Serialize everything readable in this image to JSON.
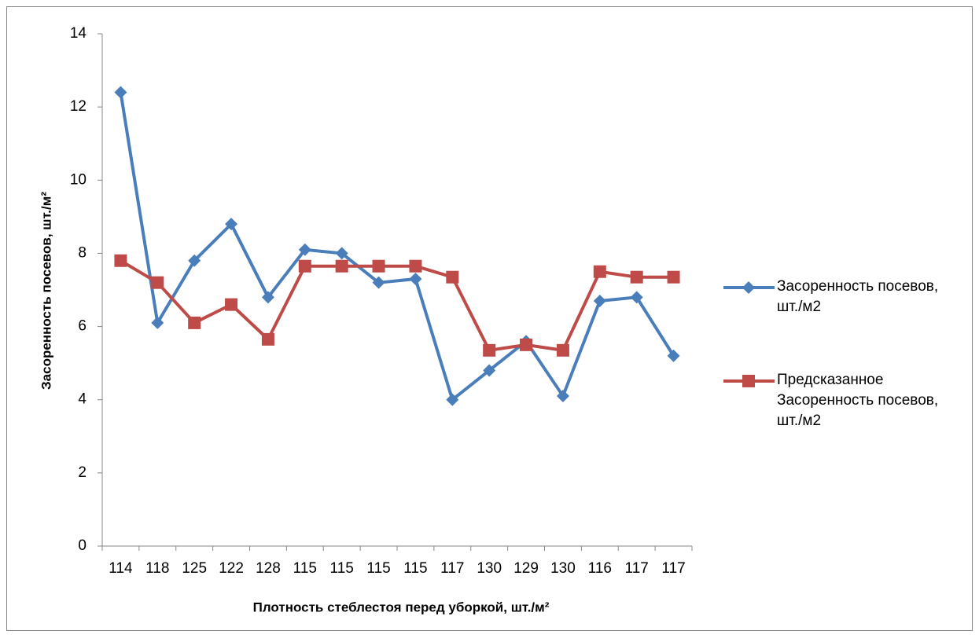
{
  "chart_data": {
    "type": "line",
    "xlabel": "Плотность стеблестоя перед уборкой, шт./м²",
    "ylabel": "Засоренность посевов, шт./м²",
    "categories": [
      "114",
      "118",
      "125",
      "122",
      "128",
      "115",
      "115",
      "115",
      "115",
      "117",
      "130",
      "129",
      "130",
      "116",
      "117",
      "117"
    ],
    "series": [
      {
        "name": "Засоренность посевов, шт./м2",
        "color": "#4a7ebb",
        "marker": "diamond",
        "values": [
          12.4,
          6.1,
          7.8,
          8.8,
          6.8,
          8.1,
          8.0,
          7.2,
          7.3,
          4.0,
          4.8,
          5.6,
          4.1,
          6.7,
          6.8,
          5.2
        ]
      },
      {
        "name": "Предсказанное Засоренность посевов, шт./м2",
        "color": "#be4b48",
        "marker": "square",
        "values": [
          7.8,
          7.2,
          6.1,
          6.6,
          5.65,
          7.65,
          7.65,
          7.65,
          7.65,
          7.35,
          5.35,
          5.5,
          5.35,
          7.5,
          7.35,
          7.35
        ]
      }
    ],
    "ylim": [
      0,
      14
    ],
    "yticks": [
      0,
      2,
      4,
      6,
      8,
      10,
      12,
      14
    ],
    "grid": false,
    "legend": "right"
  }
}
